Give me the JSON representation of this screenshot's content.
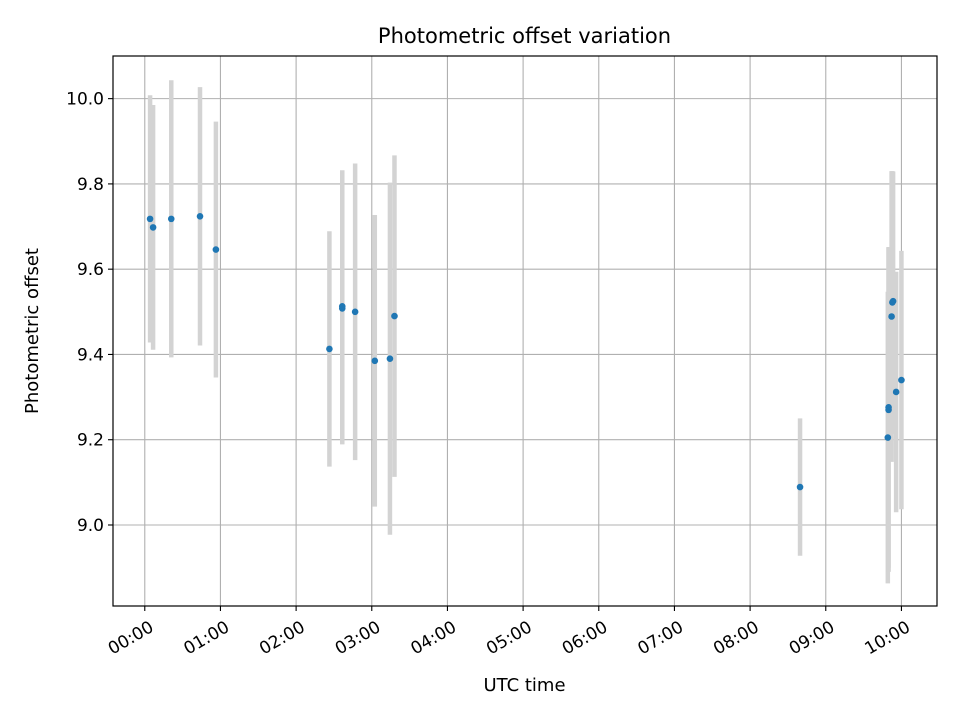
{
  "chart_data": {
    "type": "scatter",
    "title": "Photometric offset variation",
    "xlabel": "UTC time",
    "ylabel": "Photometric offset",
    "x_ticks": [
      "00:00",
      "01:00",
      "02:00",
      "03:00",
      "04:00",
      "05:00",
      "06:00",
      "07:00",
      "08:00",
      "09:00",
      "10:00"
    ],
    "x_tick_values": [
      0,
      1,
      2,
      3,
      4,
      5,
      6,
      7,
      8,
      9,
      10
    ],
    "y_ticks": [
      "9.0",
      "9.2",
      "9.4",
      "9.6",
      "9.8",
      "10.0"
    ],
    "y_tick_values": [
      9.0,
      9.2,
      9.4,
      9.6,
      9.8,
      10.0
    ],
    "xlim": [
      -0.42,
      10.47
    ],
    "ylim": [
      8.81,
      10.1
    ],
    "grid": true,
    "point_color": "#1f77b4",
    "errorbar_color": "#d3d3d3",
    "points": [
      {
        "x": 0.07,
        "y": 9.718,
        "yerr": 0.29
      },
      {
        "x": 0.11,
        "y": 9.698,
        "yerr": 0.287
      },
      {
        "x": 0.35,
        "y": 9.718,
        "yerr": 0.325
      },
      {
        "x": 0.73,
        "y": 9.724,
        "yerr": 0.303
      },
      {
        "x": 0.94,
        "y": 9.646,
        "yerr": 0.3
      },
      {
        "x": 2.44,
        "y": 9.413,
        "yerr": 0.276
      },
      {
        "x": 2.61,
        "y": 9.508,
        "yerr": 0.319
      },
      {
        "x": 2.61,
        "y": 9.513,
        "yerr": 0.319
      },
      {
        "x": 2.78,
        "y": 9.5,
        "yerr": 0.348
      },
      {
        "x": 3.04,
        "y": 9.385,
        "yerr": 0.342
      },
      {
        "x": 3.24,
        "y": 9.39,
        "yerr": 0.413
      },
      {
        "x": 3.3,
        "y": 9.49,
        "yerr": 0.377
      },
      {
        "x": 8.66,
        "y": 9.089,
        "yerr": 0.161
      },
      {
        "x": 9.82,
        "y": 9.205,
        "yerr": 0.342
      },
      {
        "x": 9.83,
        "y": 9.27,
        "yerr": 0.38
      },
      {
        "x": 9.83,
        "y": 9.276,
        "yerr": 0.376
      },
      {
        "x": 9.87,
        "y": 9.489,
        "yerr": 0.341
      },
      {
        "x": 9.88,
        "y": 9.522,
        "yerr": 0.308
      },
      {
        "x": 9.89,
        "y": 9.525,
        "yerr": 0.304
      },
      {
        "x": 9.93,
        "y": 9.312,
        "yerr": 0.282
      },
      {
        "x": 10.0,
        "y": 9.34,
        "yerr": 0.303
      }
    ]
  }
}
